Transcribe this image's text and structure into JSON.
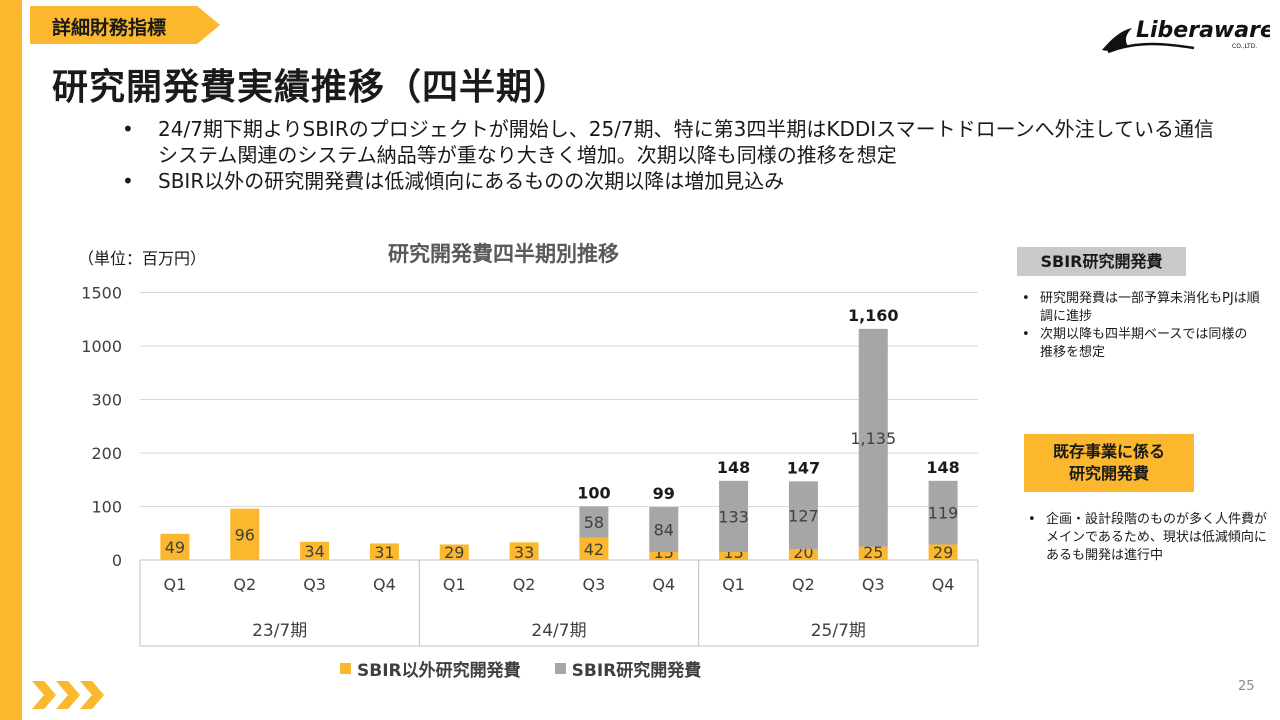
{
  "header": {
    "section_tag": "詳細財務指標",
    "title": "研究開発費実績推移（四半期）",
    "logo_text": "Liberaware",
    "logo_sub": "CO.,LTD."
  },
  "bullets": [
    "24/7期下期よりSBIRのプロジェクトが開始し、25/7期、特に第3四半期はKDDIスマートドローンへ外注している通信システム関連のシステム納品等が重なり大きく増加。次期以降も同様の推移を想定",
    "SBIR以外の研究開発費は低減傾向にあるものの次期以降は増加見込み"
  ],
  "chart_data": {
    "type": "bar",
    "stacked": true,
    "title": "研究開発費四半期別推移",
    "unit_label": "（単位：百万円）",
    "y_tick_labels": [
      "0",
      "100",
      "200",
      "300",
      "1000",
      "1500"
    ],
    "y_axis_note": "broken axis: 0–300 linear, then 1000 and 1500",
    "grid": true,
    "legend_position": "bottom",
    "categories": [
      "Q1",
      "Q2",
      "Q3",
      "Q4",
      "Q1",
      "Q2",
      "Q3",
      "Q4",
      "Q1",
      "Q2",
      "Q3",
      "Q4"
    ],
    "groups": [
      {
        "label": "23/7期",
        "count": 4
      },
      {
        "label": "24/7期",
        "count": 4
      },
      {
        "label": "25/7期",
        "count": 4
      }
    ],
    "series": [
      {
        "name": "SBIR以外研究開発費",
        "color": "#FBB82E",
        "values": [
          49,
          96,
          34,
          31,
          29,
          33,
          42,
          15,
          15,
          20,
          25,
          29
        ],
        "labels": [
          "49",
          "96",
          "34",
          "31",
          "29",
          "33",
          "42",
          "15",
          "15",
          "20",
          "25",
          "29"
        ]
      },
      {
        "name": "SBIR研究開発費",
        "color": "#A6A6A6",
        "values": [
          0,
          0,
          0,
          0,
          0,
          0,
          58,
          84,
          133,
          127,
          1135,
          119
        ],
        "labels": [
          "",
          "",
          "",
          "",
          "",
          "",
          "58",
          "84",
          "133",
          "127",
          "1,135",
          "119"
        ]
      }
    ],
    "totals": [
      "",
      "",
      "",
      "",
      "",
      "",
      "100",
      "99",
      "148",
      "147",
      "1,160",
      "148"
    ]
  },
  "sidebar": {
    "sbir_label": "SBIR研究開発費",
    "sbir_notes": [
      "研究開発費は一部予算未消化もPJは順調に進捗",
      "次期以降も四半期ベースでは同様の推移を想定"
    ],
    "existing_label_line1": "既存事業に係る",
    "existing_label_line2": "研究開発費",
    "existing_notes": [
      "企画・設計段階のものが多く人件費がメインであるため、現状は低減傾向にあるも開発は進行中"
    ]
  },
  "footer": {
    "page_number": "25"
  }
}
